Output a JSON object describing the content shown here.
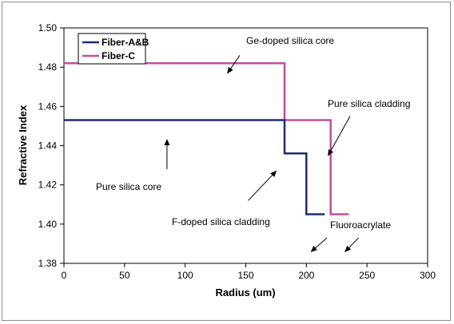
{
  "chart_data": {
    "type": "line",
    "title": "",
    "xlabel": "Radius (um)",
    "ylabel": "Refractive Index",
    "xlim": [
      0,
      300
    ],
    "ylim": [
      1.38,
      1.5
    ],
    "x_ticks": [
      "0",
      "50",
      "100",
      "150",
      "200",
      "250",
      "300"
    ],
    "y_ticks": [
      "1.38",
      "1.40",
      "1.42",
      "1.44",
      "1.46",
      "1.48",
      "1.50"
    ],
    "grid": false,
    "legend_position": "top-left",
    "series": [
      {
        "name": "Fiber-A&B",
        "color": "#1f2d6b",
        "points": [
          {
            "x": 0,
            "y": 1.453
          },
          {
            "x": 182,
            "y": 1.453
          },
          {
            "x": 182,
            "y": 1.436
          },
          {
            "x": 200,
            "y": 1.436
          },
          {
            "x": 200,
            "y": 1.405
          },
          {
            "x": 215,
            "y": 1.405
          }
        ]
      },
      {
        "name": "Fiber-C",
        "color": "#c0509c",
        "points": [
          {
            "x": 0,
            "y": 1.482
          },
          {
            "x": 182,
            "y": 1.482
          },
          {
            "x": 182,
            "y": 1.453
          },
          {
            "x": 220,
            "y": 1.453
          },
          {
            "x": 220,
            "y": 1.405
          },
          {
            "x": 235,
            "y": 1.405
          }
        ]
      }
    ],
    "annotations": [
      {
        "text": "Ge-doped silica core",
        "arrows": [
          {
            "from": [
              145,
              1.486
            ],
            "to": [
              135,
              1.477
            ]
          }
        ]
      },
      {
        "text": "Pure silica cladding",
        "arrows": [
          {
            "from": [
              236,
              1.455
            ],
            "to": [
              218,
              1.435
            ]
          }
        ]
      },
      {
        "text": "Pure silica core",
        "arrows": [
          {
            "from": [
              85,
              1.428
            ],
            "to": [
              85,
              1.443
            ]
          }
        ]
      },
      {
        "text": "F-doped silica cladding",
        "arrows": [
          {
            "from": [
              152,
              1.412
            ],
            "to": [
              175,
              1.427
            ]
          }
        ]
      },
      {
        "text": "Fluoroacrylate",
        "arrows": [
          {
            "from": [
              217,
              1.393
            ],
            "to": [
              204,
              1.386
            ]
          },
          {
            "from": [
              243,
              1.393
            ],
            "to": [
              232,
              1.386
            ]
          }
        ]
      }
    ]
  }
}
